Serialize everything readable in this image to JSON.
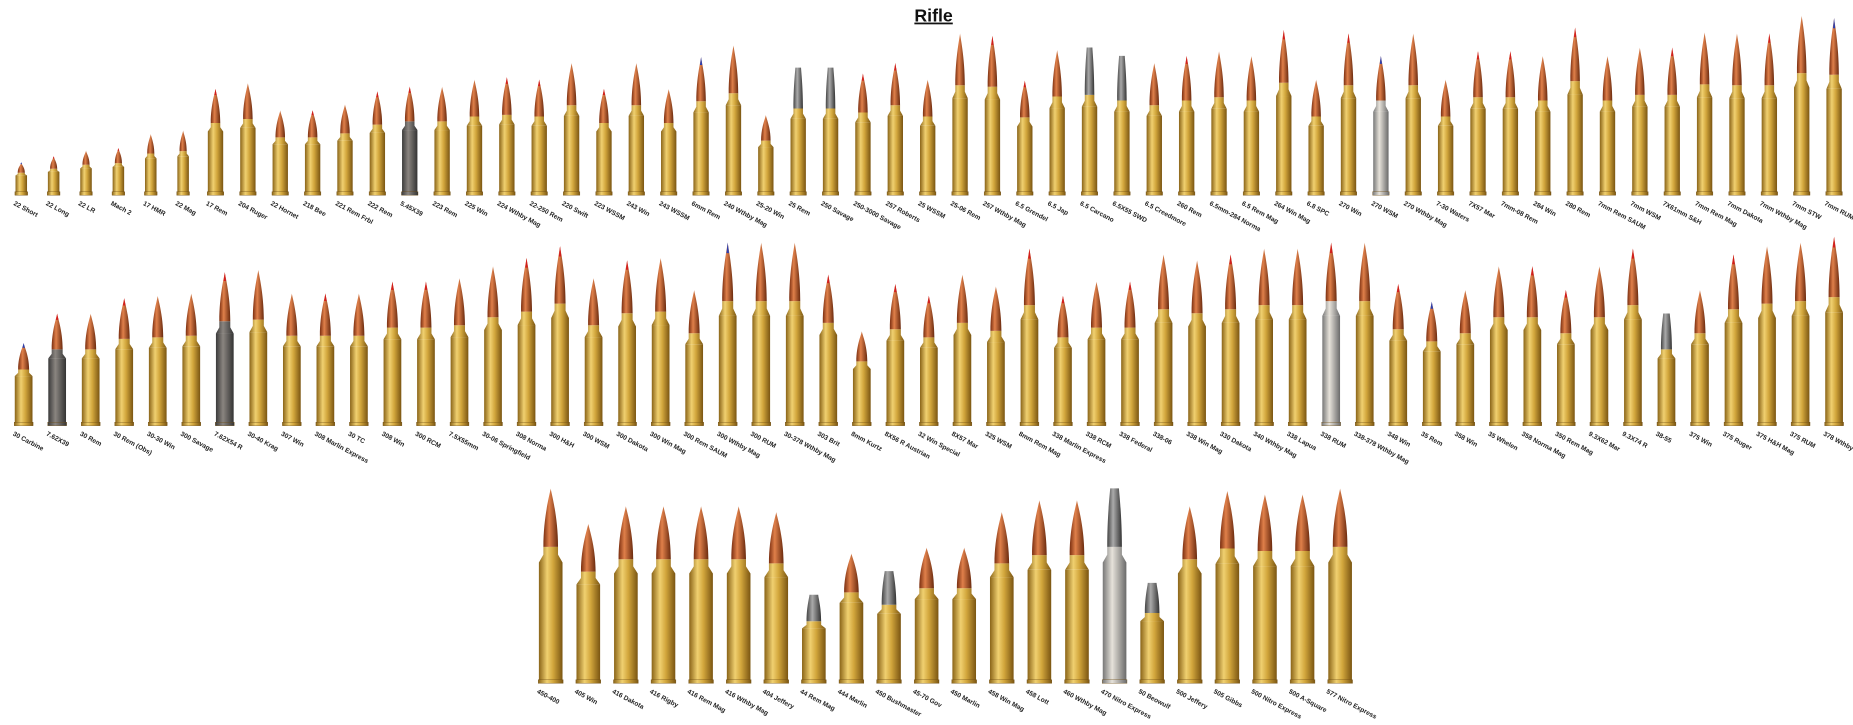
{
  "title": "Rifle",
  "rows": [
    [
      "22 Short",
      "22 Long",
      "22 LR",
      "Mach 2",
      "17 HMR",
      "22 Mag",
      "17 Rem",
      "204 Ruger",
      "22 Hornet",
      "218 Bee",
      "221 Rem Frbl",
      "222 Rem",
      "5.45X39",
      "223 Rem",
      "225 Win",
      "224 Wthby Mag",
      "22-250 Rem",
      "220 Swift",
      "223 WSSM",
      "243 Win",
      "243 WSSM",
      "6mm Rem",
      "240 Wthby Mag",
      "25-20 Win",
      "25 Rem",
      "250 Savage",
      "250-3000 Savage",
      "257 Roberts",
      "25 WSSM",
      "25-06 Rem",
      "257 Wthby Mag",
      "6.5 Grendel",
      "6.5 Jap",
      "6.5 Carcano",
      "6.5X55 SWD",
      "6.5 Creedmore",
      "260 Rem",
      "6.5mm-284 Norma",
      "6.5 Rem Mag",
      "264 Win Mag",
      "6.8 SPC",
      "270 Win",
      "270 WSM",
      "270 Wthby Mag",
      "7-30 Waters",
      "7X57 Mar",
      "7mm-08 Rem",
      "284 Win",
      "280 Rem",
      "7mm Rem SAUM",
      "7mm WSM",
      "7X61mm S&H",
      "7mm Rem Mag",
      "7mm Dakota",
      "7mm Wthby Mag",
      "7mm STW",
      "7mm RUM"
    ],
    [
      "30 Carbine",
      "7.62X39",
      "30 Rem",
      "30 Rem (Obs)",
      "30-30 Win",
      "300 Savage",
      "7.62X54 R",
      "30-40 Krag",
      "307 Win",
      "308 Marlin Express",
      "30 TC",
      "308 Win",
      "300 RCM",
      "7.5X55mm",
      "30-06 Springfield",
      "308 Norma",
      "300 H&H",
      "300 WSM",
      "300 Dakota",
      "300 Win Mag",
      "300 Rem SAUM",
      "300 Wthby Mag",
      "300 RUM",
      "30-378 Wthby Mag",
      "303 Brit",
      "8mm Kurtz",
      "8X56 R Austrian",
      "32 Win Special",
      "8X57 Mar",
      "325 WSM",
      "8mm Rem Mag",
      "338 Marlin Express",
      "338 RCM",
      "338 Federal",
      "338-06",
      "338 Win Mag",
      "330 Dakota",
      "340 Wthby Mag",
      "338 Lapua",
      "338 RUM",
      "338-378 Wthby Mag",
      "348 Win",
      "35 Rem",
      "358 Win",
      "35 Whelen",
      "358 Norma Mag",
      "350 Rem Mag",
      "9.3X62 Mar",
      "9.3X74 R",
      "38-55",
      "375 Win",
      "375 Ruger",
      "375 H&H Mag",
      "375 RUM",
      "378 Wthby Mag"
    ],
    [
      "450-400",
      "405 Win",
      "416 Dakota",
      "416 Rigby",
      "416 Rem Mag",
      "416 Wthby Mag",
      "404 Jeffery",
      "44 Rem Mag",
      "444 Marlin",
      "450 Bushmaster",
      "45-70 Gov",
      "450 Marlin",
      "458 Win Mag",
      "458 Lott",
      "460 Wthby Mag",
      "470 Nitro Express",
      "50 Beowulf",
      "500 Jeffery",
      "505 Gibbs",
      "500 Nitro Express",
      "500 A-Square",
      "577 Nitro Express"
    ]
  ]
}
